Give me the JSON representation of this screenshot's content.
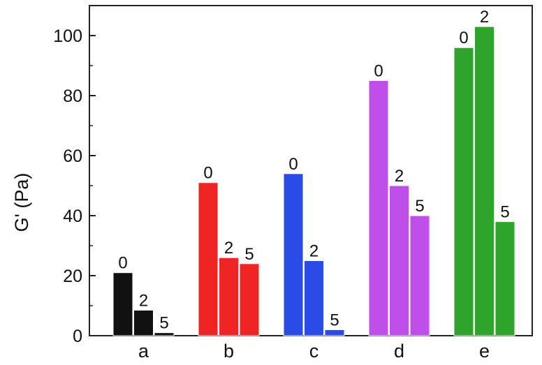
{
  "chart_data": {
    "type": "bar",
    "xlabel": "",
    "ylabel": "G' (Pa)",
    "ylim": [
      0,
      110
    ],
    "yticks": [
      0,
      20,
      40,
      60,
      80,
      100
    ],
    "grid": false,
    "groups": [
      {
        "category": "a",
        "color": "#111111",
        "bars": [
          {
            "label": "0",
            "value": 21
          },
          {
            "label": "2",
            "value": 8.5
          },
          {
            "label": "5",
            "value": 1
          }
        ]
      },
      {
        "category": "b",
        "color": "#f02424",
        "bars": [
          {
            "label": "0",
            "value": 51
          },
          {
            "label": "2",
            "value": 26
          },
          {
            "label": "5",
            "value": 24
          }
        ]
      },
      {
        "category": "c",
        "color": "#2a4be6",
        "bars": [
          {
            "label": "0",
            "value": 54
          },
          {
            "label": "2",
            "value": 25
          },
          {
            "label": "5",
            "value": 2
          }
        ]
      },
      {
        "category": "d",
        "color": "#c04ee8",
        "bars": [
          {
            "label": "0",
            "value": 85
          },
          {
            "label": "2",
            "value": 50
          },
          {
            "label": "5",
            "value": 40
          }
        ]
      },
      {
        "category": "e",
        "color": "#2ea52a",
        "bars": [
          {
            "label": "0",
            "value": 96
          },
          {
            "label": "2",
            "value": 103
          },
          {
            "label": "5",
            "value": 38
          }
        ]
      }
    ]
  }
}
